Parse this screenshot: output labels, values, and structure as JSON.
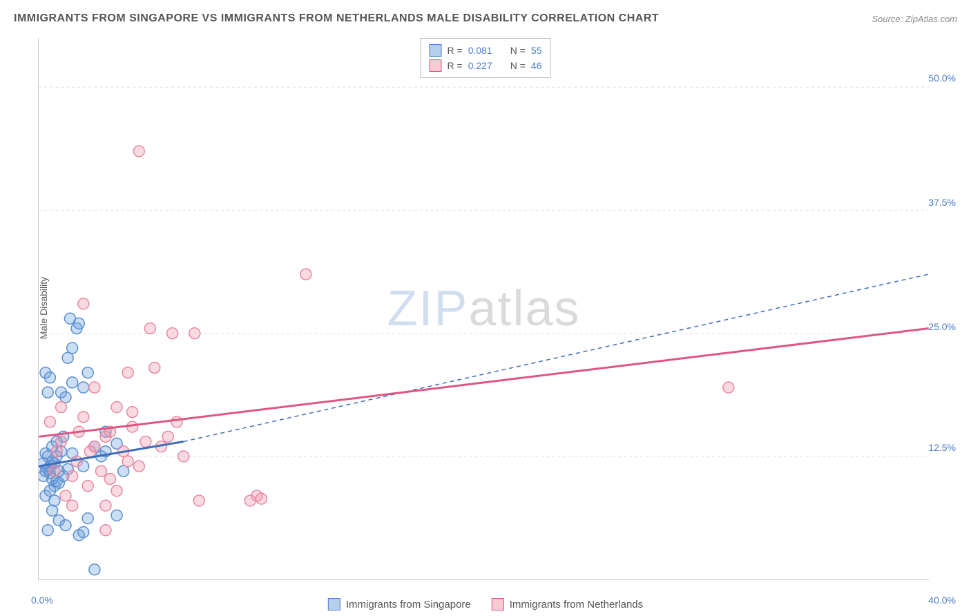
{
  "title": "IMMIGRANTS FROM SINGAPORE VS IMMIGRANTS FROM NETHERLANDS MALE DISABILITY CORRELATION CHART",
  "source": "Source: ZipAtlas.com",
  "ylabel": "Male Disability",
  "watermark_zip": "ZIP",
  "watermark_atlas": "atlas",
  "chart": {
    "type": "scatter",
    "xlim": [
      0,
      40
    ],
    "ylim": [
      0,
      55
    ],
    "x_ticks": [
      0,
      10,
      20,
      30,
      40
    ],
    "y_gridlines": [
      12.5,
      25.0,
      37.5,
      50.0
    ],
    "x_origin_label": "0.0%",
    "x_max_label": "40.0%",
    "y_tick_labels": [
      "12.5%",
      "25.0%",
      "37.5%",
      "50.0%"
    ],
    "background_color": "#ffffff",
    "grid_color": "#dddddd",
    "axis_color": "#cccccc",
    "label_color": "#4a7bc8",
    "marker_radius": 8,
    "marker_stroke_width": 1.5,
    "series": [
      {
        "name": "Immigrants from Singapore",
        "color_fill": "rgba(110,160,220,0.35)",
        "color_stroke": "#5a8fd0",
        "R": "0.081",
        "N": "55",
        "trend": {
          "x1": 0,
          "y1": 11.5,
          "x2": 6.5,
          "y2": 14.0,
          "style": "solid",
          "color": "#3a6bb8",
          "width": 3,
          "extend_dash_to_x": 40,
          "extend_dash_to_y": 31.0
        },
        "points": [
          [
            0.2,
            10.5
          ],
          [
            0.3,
            11.0
          ],
          [
            0.4,
            11.2
          ],
          [
            0.5,
            10.8
          ],
          [
            0.5,
            11.5
          ],
          [
            0.6,
            12.0
          ],
          [
            0.6,
            10.2
          ],
          [
            0.7,
            11.8
          ],
          [
            0.7,
            9.5
          ],
          [
            0.8,
            12.5
          ],
          [
            0.8,
            10.0
          ],
          [
            0.9,
            11.0
          ],
          [
            1.0,
            13.0
          ],
          [
            1.0,
            19.0
          ],
          [
            1.1,
            14.5
          ],
          [
            1.2,
            18.5
          ],
          [
            1.3,
            22.5
          ],
          [
            1.4,
            26.5
          ],
          [
            1.5,
            23.5
          ],
          [
            1.5,
            20.0
          ],
          [
            1.7,
            25.5
          ],
          [
            1.8,
            26.0
          ],
          [
            2.0,
            19.5
          ],
          [
            2.2,
            21.0
          ],
          [
            0.4,
            5.0
          ],
          [
            0.6,
            7.0
          ],
          [
            0.9,
            6.0
          ],
          [
            1.2,
            5.5
          ],
          [
            1.8,
            4.5
          ],
          [
            2.0,
            4.8
          ],
          [
            2.5,
            1.0
          ],
          [
            3.5,
            6.5
          ],
          [
            2.0,
            11.5
          ],
          [
            2.5,
            13.5
          ],
          [
            3.0,
            13.0
          ],
          [
            3.0,
            15.0
          ],
          [
            3.8,
            11.0
          ],
          [
            3.5,
            13.8
          ],
          [
            2.8,
            12.5
          ],
          [
            1.5,
            12.8
          ],
          [
            0.3,
            8.5
          ],
          [
            0.5,
            9.0
          ],
          [
            0.7,
            8.0
          ],
          [
            0.9,
            9.8
          ],
          [
            1.1,
            10.5
          ],
          [
            1.3,
            11.2
          ],
          [
            0.4,
            12.5
          ],
          [
            0.6,
            13.5
          ],
          [
            0.8,
            14.0
          ],
          [
            0.3,
            21.0
          ],
          [
            0.5,
            20.5
          ],
          [
            0.4,
            19.0
          ],
          [
            0.2,
            11.8
          ],
          [
            0.3,
            12.8
          ],
          [
            2.2,
            6.2
          ]
        ]
      },
      {
        "name": "Immigrants from Netherlands",
        "color_fill": "rgba(240,150,170,0.35)",
        "color_stroke": "#e888a5",
        "R": "0.227",
        "N": "46",
        "trend": {
          "x1": 0,
          "y1": 14.5,
          "x2": 40,
          "y2": 25.5,
          "style": "solid",
          "color": "#e05580",
          "width": 3
        },
        "points": [
          [
            0.5,
            16.0
          ],
          [
            1.0,
            14.0
          ],
          [
            1.5,
            10.5
          ],
          [
            1.7,
            12.0
          ],
          [
            2.0,
            16.5
          ],
          [
            2.2,
            9.5
          ],
          [
            2.5,
            13.5
          ],
          [
            2.8,
            11.0
          ],
          [
            3.0,
            14.5
          ],
          [
            3.2,
            10.2
          ],
          [
            3.5,
            17.5
          ],
          [
            3.8,
            13.0
          ],
          [
            4.0,
            21.0
          ],
          [
            4.2,
            15.5
          ],
          [
            4.5,
            11.5
          ],
          [
            4.8,
            14.0
          ],
          [
            5.0,
            25.5
          ],
          [
            5.2,
            21.5
          ],
          [
            5.5,
            13.5
          ],
          [
            6.0,
            25.0
          ],
          [
            6.2,
            16.0
          ],
          [
            6.5,
            12.5
          ],
          [
            7.0,
            25.0
          ],
          [
            7.2,
            8.0
          ],
          [
            3.0,
            7.5
          ],
          [
            3.5,
            9.0
          ],
          [
            4.0,
            12.0
          ],
          [
            1.2,
            8.5
          ],
          [
            1.8,
            15.0
          ],
          [
            2.3,
            13.0
          ],
          [
            4.5,
            43.5
          ],
          [
            9.5,
            8.0
          ],
          [
            9.8,
            8.5
          ],
          [
            10.0,
            8.2
          ],
          [
            12.0,
            31.0
          ],
          [
            1.0,
            17.5
          ],
          [
            0.8,
            13.0
          ],
          [
            2.5,
            19.5
          ],
          [
            1.5,
            7.5
          ],
          [
            3.0,
            5.0
          ],
          [
            2.0,
            28.0
          ],
          [
            4.2,
            17.0
          ],
          [
            5.8,
            14.5
          ],
          [
            0.7,
            11.0
          ],
          [
            31.0,
            19.5
          ],
          [
            3.2,
            15.0
          ]
        ]
      }
    ]
  },
  "legend_top": {
    "r_label": "R =",
    "n_label": "N ="
  },
  "legend_bottom": {
    "item1": "Immigrants from Singapore",
    "item2": "Immigrants from Netherlands"
  }
}
